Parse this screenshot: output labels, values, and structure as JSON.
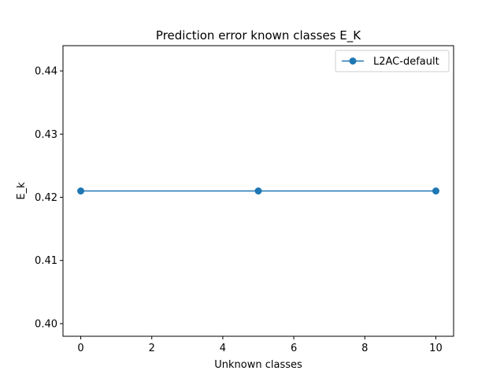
{
  "chart_data": {
    "type": "line",
    "title": "Prediction error known classes E_K",
    "xlabel": "Unknown classes",
    "ylabel": "E_k",
    "xlim": [
      -0.5,
      10.5
    ],
    "ylim": [
      0.398,
      0.444
    ],
    "xticks": [
      0,
      2,
      4,
      6,
      8,
      10
    ],
    "yticks": [
      0.4,
      0.41,
      0.42,
      0.43,
      0.44
    ],
    "xtick_labels": [
      "0",
      "2",
      "4",
      "6",
      "8",
      "10"
    ],
    "ytick_labels": [
      "0.40",
      "0.41",
      "0.42",
      "0.43",
      "0.44"
    ],
    "grid": false,
    "legend_position": "top-right",
    "series": [
      {
        "name": "L2AC-default",
        "color": "#1f77b4",
        "marker": "circle",
        "x": [
          0,
          5,
          10
        ],
        "y": [
          0.421,
          0.421,
          0.421
        ]
      }
    ]
  }
}
